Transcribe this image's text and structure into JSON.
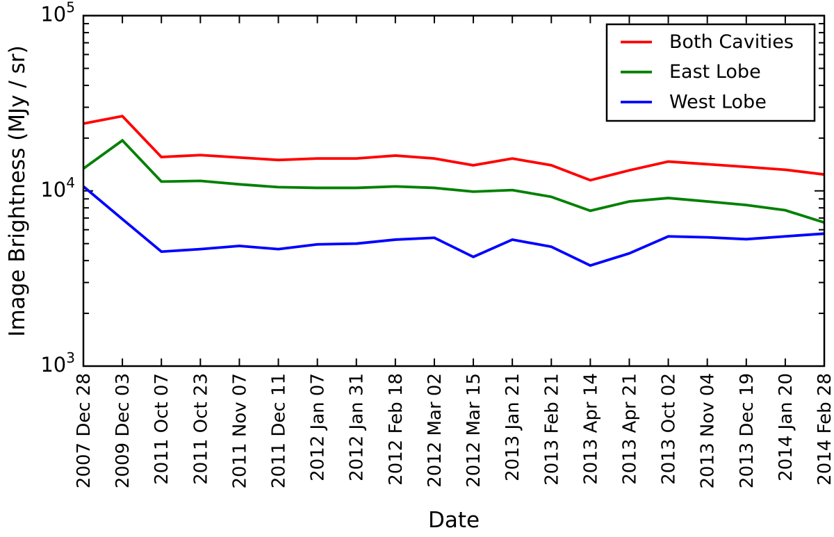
{
  "figure": {
    "background": "#ffffff",
    "axis_color": "#000000"
  },
  "y_axis": {
    "label": "Image Brightness (MJy / sr)",
    "scale": "log",
    "tick_exponents": [
      3,
      4,
      5
    ],
    "tick_labels": [
      "10^3",
      "10^4",
      "10^5"
    ]
  },
  "x_axis": {
    "label": "Date"
  },
  "legend": {
    "position": "upper right",
    "entries": [
      "Both Cavities",
      "East Lobe",
      "West Lobe"
    ]
  },
  "chart_data": {
    "type": "line",
    "title": "",
    "xlabel": "Date",
    "ylabel": "Image Brightness (MJy / sr)",
    "yscale": "log",
    "ylim": [
      1000,
      100000
    ],
    "grid": false,
    "legend_position": "upper right",
    "categories": [
      "2007 Dec 28",
      "2009 Dec 03",
      "2011 Oct 07",
      "2011 Oct 23",
      "2011 Nov 07",
      "2011 Dec 11",
      "2012 Jan 07",
      "2012 Jan 31",
      "2012 Feb 18",
      "2012 Mar 02",
      "2012 Mar 15",
      "2013 Jan 21",
      "2013 Feb 21",
      "2013 Apr 14",
      "2013 Apr 21",
      "2013 Oct 02",
      "2013 Nov 04",
      "2013 Dec 19",
      "2014 Jan 20",
      "2014 Feb 28"
    ],
    "series": [
      {
        "name": "Both Cavities",
        "color": "#ff0000",
        "values": [
          24200,
          26700,
          15600,
          16000,
          15500,
          15000,
          15300,
          15300,
          15900,
          15300,
          14000,
          15300,
          14000,
          11500,
          13100,
          14700,
          14200,
          13700,
          13200,
          12400
        ]
      },
      {
        "name": "East Lobe",
        "color": "#008000",
        "values": [
          13400,
          19400,
          11300,
          11400,
          10900,
          10500,
          10400,
          10400,
          10600,
          10400,
          9900,
          10100,
          9250,
          7700,
          8700,
          9100,
          8700,
          8300,
          7750,
          6600
        ]
      },
      {
        "name": "West Lobe",
        "color": "#0000ff",
        "values": [
          10600,
          6900,
          4500,
          4650,
          4850,
          4650,
          4950,
          5000,
          5270,
          5400,
          4200,
          5270,
          4800,
          3750,
          4400,
          5500,
          5430,
          5300,
          5500,
          5700
        ]
      }
    ]
  }
}
